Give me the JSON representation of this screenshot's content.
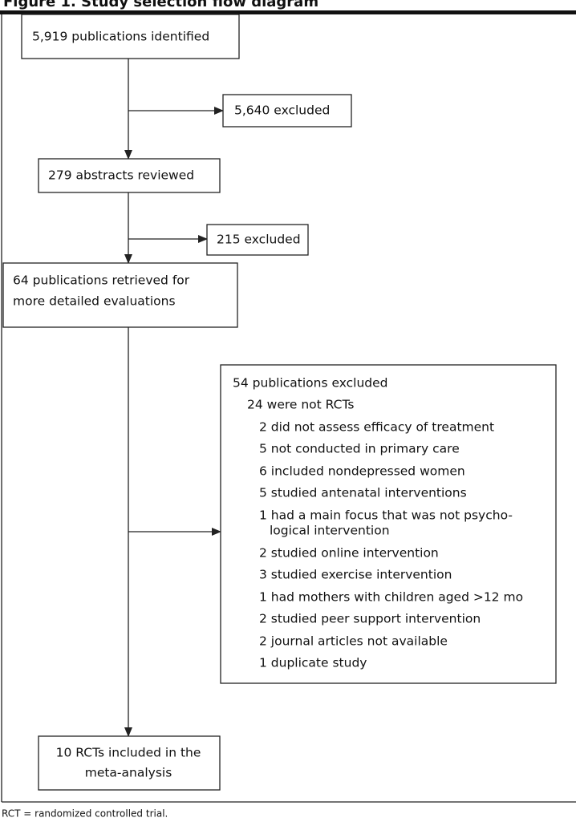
{
  "header": {
    "title": "Figure 1. Study selection flow diagram"
  },
  "nodes": [
    {
      "lines": [
        "5,919 publications identified"
      ]
    },
    {
      "lines": [
        "5,640 excluded"
      ]
    },
    {
      "lines": [
        "279 abstracts reviewed"
      ]
    },
    {
      "lines": [
        "215 excluded"
      ]
    },
    {
      "lines": [
        "64 publications retrieved for",
        "more detailed evaluations"
      ]
    },
    {
      "lines": [
        "54 publications excluded",
        "24 were not RCTs",
        "2 did not assess efficacy of treatment",
        "5 not conducted in primary care",
        "6 included nondepressed women",
        "5 studied antenatal interventions",
        "1 had a main focus that was not psycho-",
        "logical intervention",
        "2 studied online intervention",
        "3 studied exercise intervention",
        "1 had mothers with children aged >12 mo",
        "2 studied peer support intervention",
        "2 journal articles not available",
        "1 duplicate study"
      ]
    },
    {
      "lines": [
        "10 RCTs included in the",
        "meta-analysis"
      ]
    }
  ],
  "footnote": "RCT = randomized controlled trial."
}
